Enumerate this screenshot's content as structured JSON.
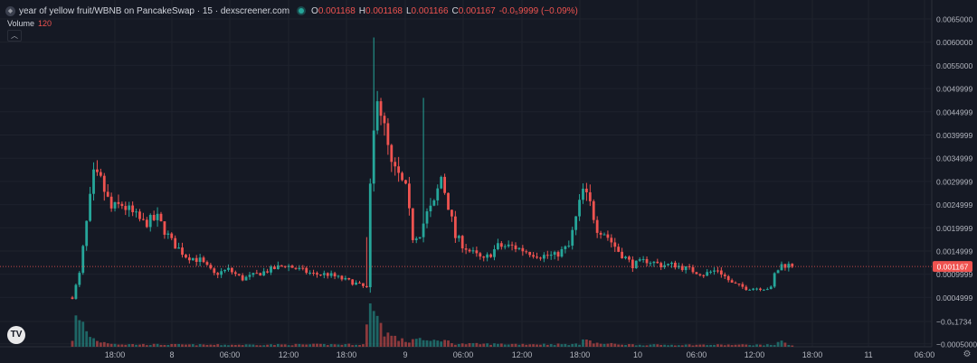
{
  "legend": {
    "title": "year of yellow fruit/WBNB on PancakeSwap · 15 · dexscreener.com",
    "open_label": "O",
    "open": "0.001168",
    "high_label": "H",
    "high": "0.001168",
    "low_label": "L",
    "low": "0.001166",
    "close_label": "C",
    "close": "0.001167",
    "change": "-0.0₅9999 (−0.09%)",
    "volume_label": "Volume",
    "volume_value": "120"
  },
  "icons": {
    "collapse": "chevron-up-icon",
    "logo": "tradingview-logo",
    "settings": "gear-icon",
    "symbol": "token-icon"
  },
  "colors": {
    "up": "#26a69a",
    "down": "#ef5350",
    "background": "#151924",
    "price_line": "#ef5350"
  },
  "chart_data": {
    "type": "candlestick",
    "y_ticks": [
      "0.0065000",
      "0.0060000",
      "0.0055000",
      "0.0049999",
      "0.0044999",
      "0.0039999",
      "0.0034999",
      "0.0029999",
      "0.0024999",
      "0.0019999",
      "0.0014999",
      "0.0009999",
      "0.0004999",
      "−0.0₅1734",
      "−0.0005000"
    ],
    "y_tick_values": [
      0.0065,
      0.006,
      0.0055,
      0.005,
      0.0045,
      0.004,
      0.0035,
      0.003,
      0.0025,
      0.002,
      0.0015,
      0.001,
      0.0005,
      -1.734e-05,
      -0.0005
    ],
    "x_ticks": [
      "18:00",
      "8",
      "06:00",
      "12:00",
      "18:00",
      "9",
      "06:00",
      "12:00",
      "18:00",
      "10",
      "06:00",
      "12:00",
      "18:00",
      "11",
      "06:00"
    ],
    "last_price": "0.001167",
    "last_price_value": 0.001167,
    "price_anchors": [
      {
        "t": 0,
        "p": 0.0005
      },
      {
        "t": 2,
        "p": 0.001
      },
      {
        "t": 4,
        "p": 0.0021
      },
      {
        "t": 6,
        "p": 0.0031
      },
      {
        "t": 8,
        "p": 0.003
      },
      {
        "t": 11,
        "p": 0.0024
      },
      {
        "t": 14,
        "p": 0.0025
      },
      {
        "t": 17,
        "p": 0.0023
      },
      {
        "t": 20,
        "p": 0.0021
      },
      {
        "t": 24,
        "p": 0.0022
      },
      {
        "t": 28,
        "p": 0.0017
      },
      {
        "t": 32,
        "p": 0.0014
      },
      {
        "t": 36,
        "p": 0.0013
      },
      {
        "t": 40,
        "p": 0.001
      },
      {
        "t": 44,
        "p": 0.0011
      },
      {
        "t": 48,
        "p": 0.0009
      },
      {
        "t": 52,
        "p": 0.001
      },
      {
        "t": 56,
        "p": 0.0011
      },
      {
        "t": 60,
        "p": 0.0012
      },
      {
        "t": 64,
        "p": 0.0011
      },
      {
        "t": 68,
        "p": 0.001
      },
      {
        "t": 72,
        "p": 0.001
      },
      {
        "t": 76,
        "p": 0.0009
      },
      {
        "t": 80,
        "p": 0.0008
      },
      {
        "t": 83,
        "p": 0.0007
      },
      {
        "t": 84,
        "p": 0.0028
      },
      {
        "t": 85,
        "p": 0.004
      },
      {
        "t": 86,
        "p": 0.005
      },
      {
        "t": 88,
        "p": 0.0041
      },
      {
        "t": 90,
        "p": 0.0033
      },
      {
        "t": 92,
        "p": 0.0031
      },
      {
        "t": 94,
        "p": 0.0028
      },
      {
        "t": 96,
        "p": 0.0018
      },
      {
        "t": 98,
        "p": 0.0019
      },
      {
        "t": 100,
        "p": 0.0023
      },
      {
        "t": 102,
        "p": 0.0025
      },
      {
        "t": 104,
        "p": 0.0031
      },
      {
        "t": 106,
        "p": 0.0025
      },
      {
        "t": 108,
        "p": 0.0018
      },
      {
        "t": 112,
        "p": 0.0015
      },
      {
        "t": 116,
        "p": 0.0013
      },
      {
        "t": 120,
        "p": 0.0016
      },
      {
        "t": 124,
        "p": 0.0016
      },
      {
        "t": 128,
        "p": 0.0015
      },
      {
        "t": 132,
        "p": 0.0014
      },
      {
        "t": 136,
        "p": 0.0014
      },
      {
        "t": 140,
        "p": 0.0016
      },
      {
        "t": 144,
        "p": 0.0028
      },
      {
        "t": 146,
        "p": 0.0025
      },
      {
        "t": 148,
        "p": 0.002
      },
      {
        "t": 150,
        "p": 0.0019
      },
      {
        "t": 152,
        "p": 0.0017
      },
      {
        "t": 154,
        "p": 0.0015
      },
      {
        "t": 158,
        "p": 0.0012
      },
      {
        "t": 162,
        "p": 0.0013
      },
      {
        "t": 166,
        "p": 0.0012
      },
      {
        "t": 170,
        "p": 0.0012
      },
      {
        "t": 174,
        "p": 0.0011
      },
      {
        "t": 178,
        "p": 0.001
      },
      {
        "t": 182,
        "p": 0.0011
      },
      {
        "t": 186,
        "p": 0.0008
      },
      {
        "t": 190,
        "p": 0.0007
      },
      {
        "t": 194,
        "p": 0.0007
      },
      {
        "t": 197,
        "p": 0.0007
      },
      {
        "t": 198,
        "p": 0.001
      },
      {
        "t": 200,
        "p": 0.0012
      },
      {
        "t": 203,
        "p": 0.0012
      }
    ],
    "volume_anchors": [
      {
        "t": 0,
        "v": 0.15
      },
      {
        "t": 1,
        "v": 0.55
      },
      {
        "t": 3,
        "v": 0.45
      },
      {
        "t": 5,
        "v": 0.2
      },
      {
        "t": 8,
        "v": 0.1
      },
      {
        "t": 14,
        "v": 0.05
      },
      {
        "t": 40,
        "v": 0.04
      },
      {
        "t": 82,
        "v": 0.05
      },
      {
        "t": 84,
        "v": 0.75
      },
      {
        "t": 85,
        "v": 1.0
      },
      {
        "t": 86,
        "v": 0.6
      },
      {
        "t": 88,
        "v": 0.3
      },
      {
        "t": 92,
        "v": 0.15
      },
      {
        "t": 95,
        "v": 0.1
      },
      {
        "t": 97,
        "v": 0.2
      },
      {
        "t": 100,
        "v": 0.1
      },
      {
        "t": 104,
        "v": 0.15
      },
      {
        "t": 108,
        "v": 0.06
      },
      {
        "t": 143,
        "v": 0.05
      },
      {
        "t": 144,
        "v": 0.22
      },
      {
        "t": 147,
        "v": 0.07
      },
      {
        "t": 160,
        "v": 0.04
      },
      {
        "t": 198,
        "v": 0.04
      },
      {
        "t": 199,
        "v": 0.12
      },
      {
        "t": 203,
        "v": 0.03
      }
    ]
  }
}
